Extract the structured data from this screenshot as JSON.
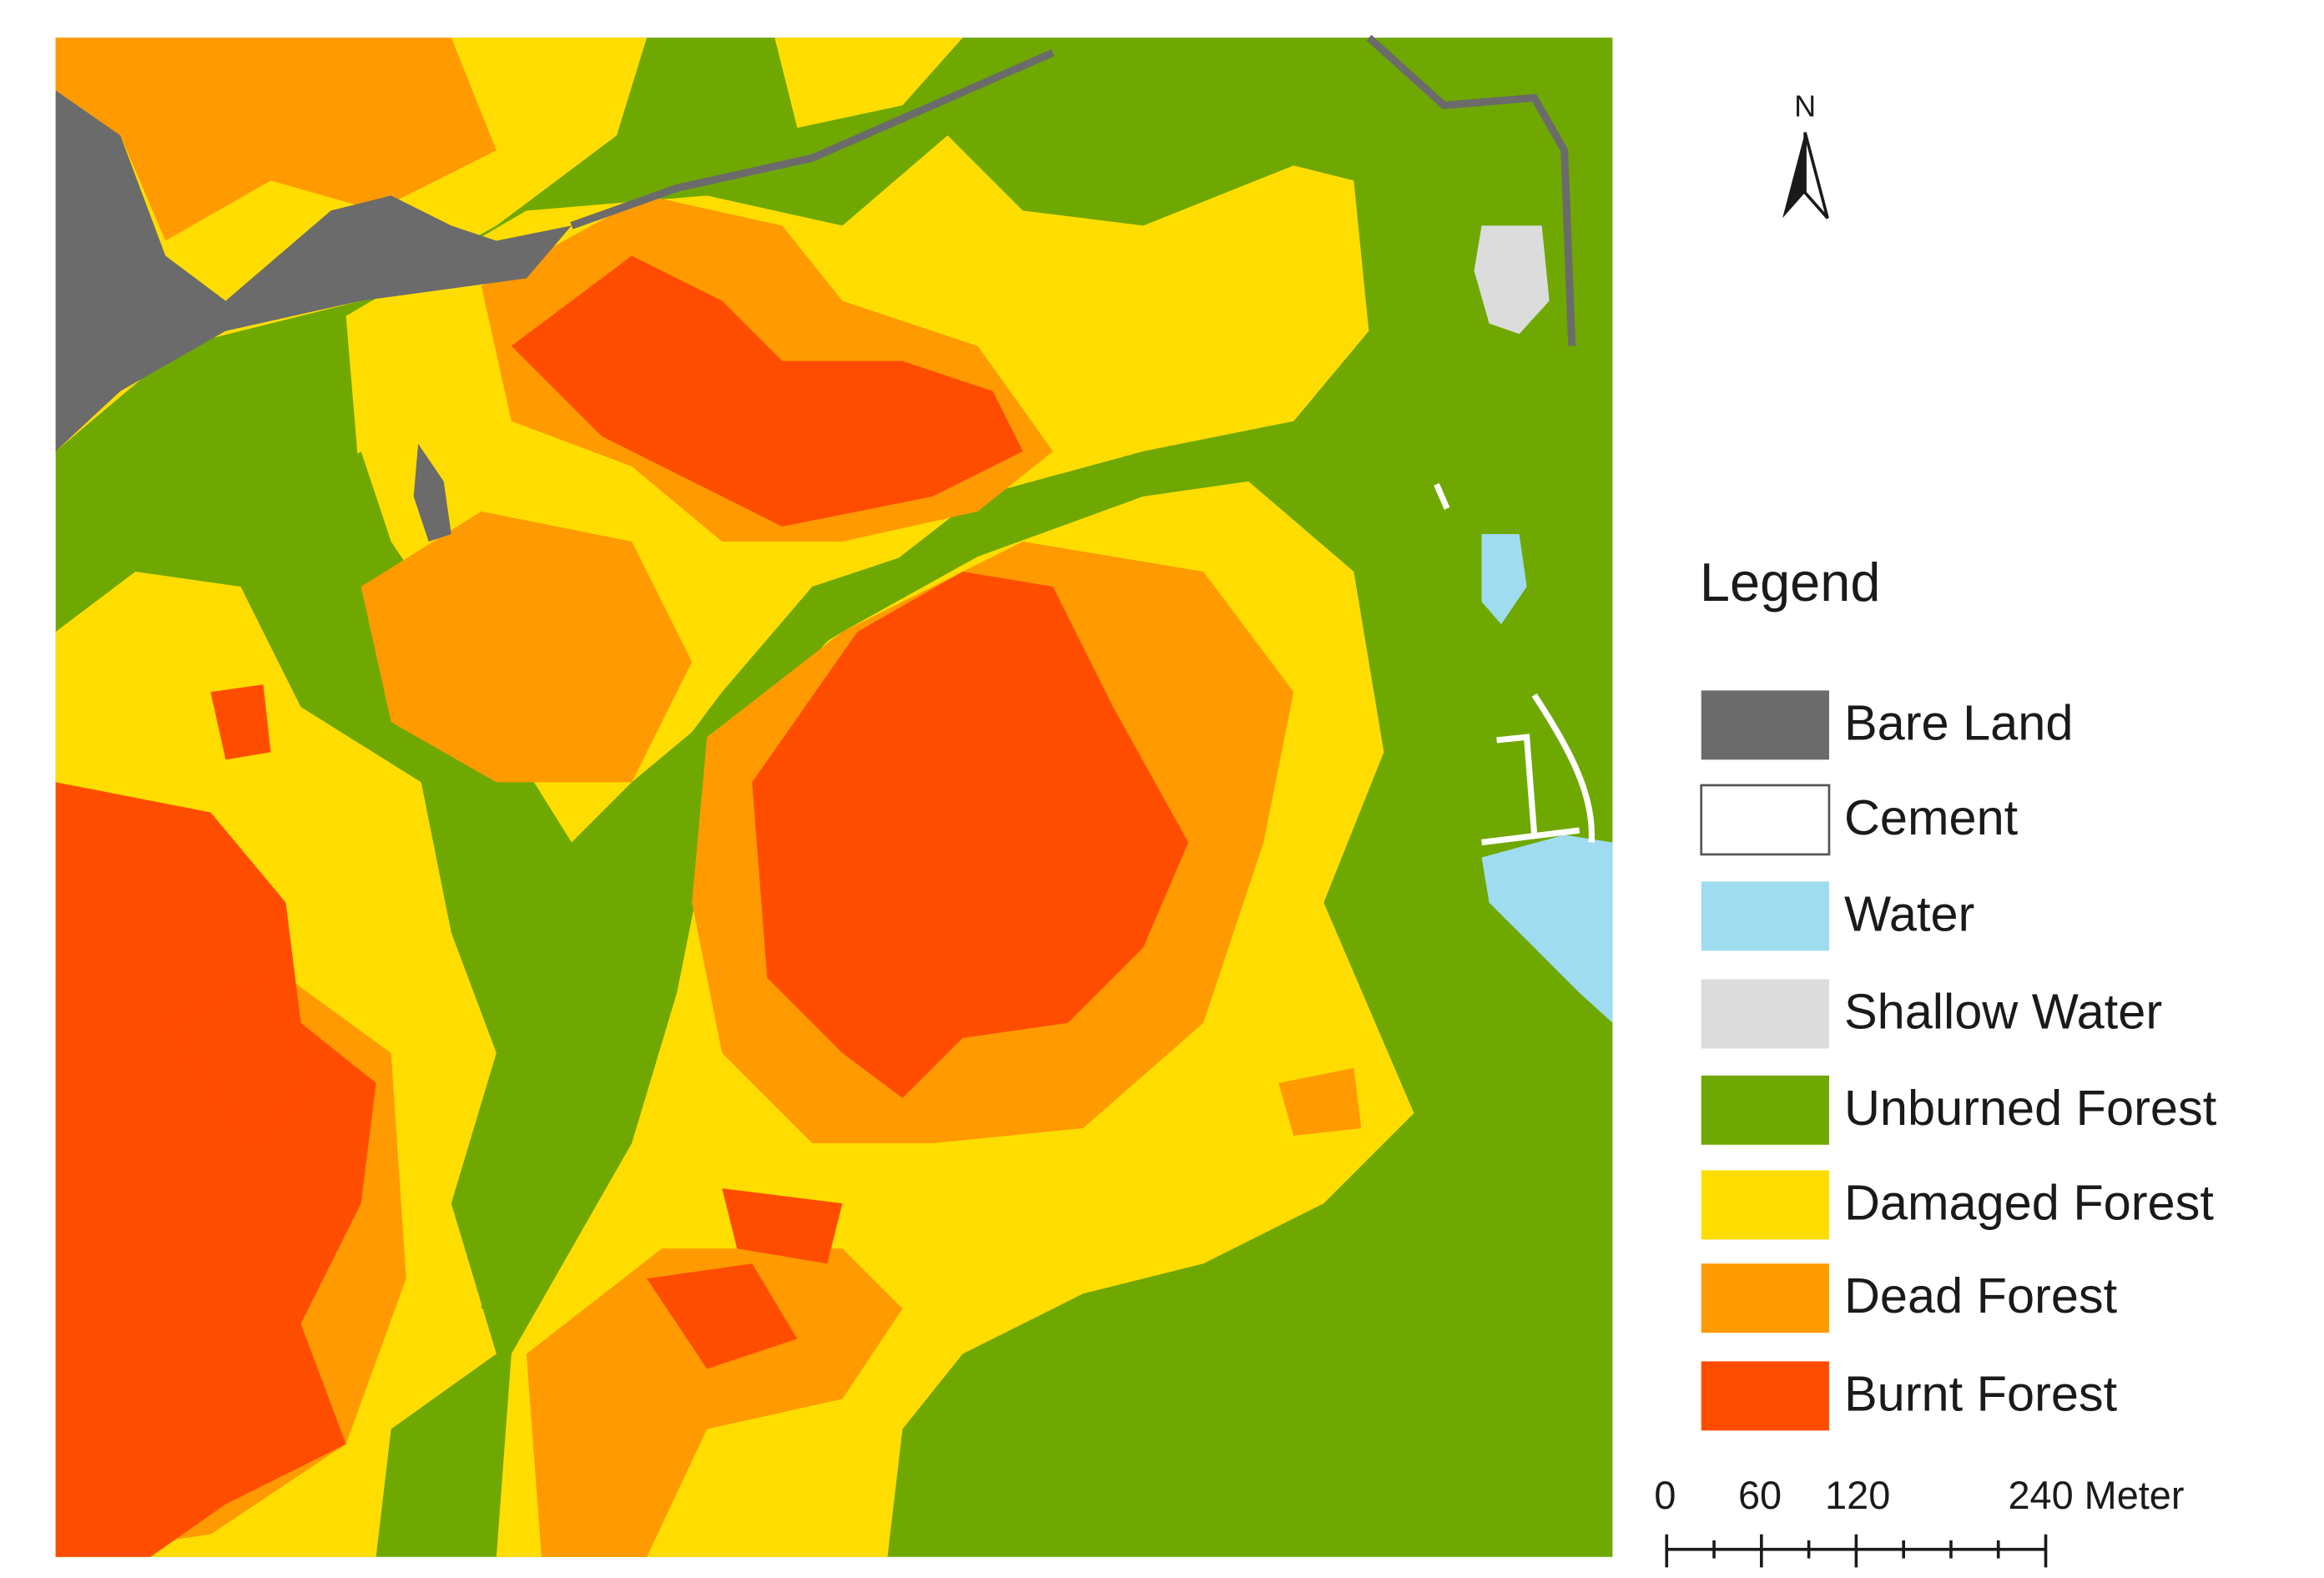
{
  "north_arrow": {
    "label": "N"
  },
  "legend": {
    "title": "Legend",
    "items": [
      {
        "label": "Bare Land",
        "color": "#6b6b6b"
      },
      {
        "label": "Cement",
        "color": "#ffffff"
      },
      {
        "label": "Water",
        "color": "#9fdcf0"
      },
      {
        "label": "Shallow Water",
        "color": "#dcdcdc"
      },
      {
        "label": "Unburned Forest",
        "color": "#6fa800"
      },
      {
        "label": "Damaged Forest",
        "color": "#ffdd00"
      },
      {
        "label": "Dead Forest",
        "color": "#ff9a00"
      },
      {
        "label": "Burnt Forest",
        "color": "#ff4d00"
      }
    ]
  },
  "scale_bar": {
    "labels": [
      "0",
      "60",
      "120",
      "240 Meter"
    ]
  }
}
